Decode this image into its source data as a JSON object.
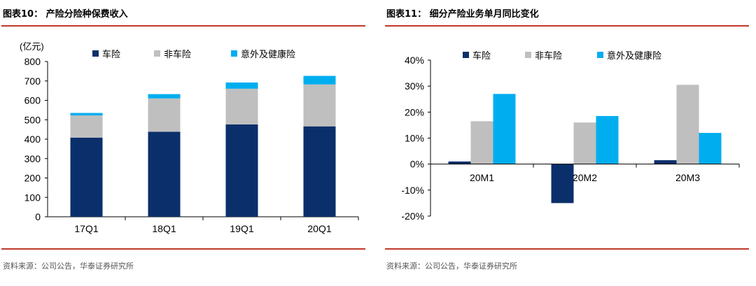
{
  "charts": {
    "left": {
      "figure_title": "图表10：  产险分险种保费收入",
      "source": "资料来源：公司公告，华泰证券研究所"
    },
    "right": {
      "figure_title": "图表11：  细分产险业务单月同比变化",
      "source": "资料来源：公司公告，华泰证券研究所"
    }
  },
  "chart_data": [
    {
      "type": "bar",
      "stacked": true,
      "title": "产险分险种保费收入",
      "unit_label": "(亿元)",
      "categories": [
        "17Q1",
        "18Q1",
        "19Q1",
        "20Q1"
      ],
      "series": [
        {
          "name": "车险",
          "color": "#0b2f6b",
          "values": [
            408,
            438,
            476,
            466
          ]
        },
        {
          "name": "非车险",
          "color": "#bfbfbf",
          "values": [
            114,
            172,
            184,
            216
          ]
        },
        {
          "name": "意外及健康险",
          "color": "#00aeef",
          "values": [
            13,
            22,
            32,
            44
          ]
        }
      ],
      "ylim": [
        0,
        800
      ],
      "yticks": [
        0,
        100,
        200,
        300,
        400,
        500,
        600,
        700,
        800
      ],
      "ytick_labels": [
        "0",
        "100",
        "200",
        "300",
        "400",
        "500",
        "600",
        "700",
        "800"
      ],
      "legend": "top"
    },
    {
      "type": "bar",
      "stacked": false,
      "title": "细分产险业务单月同比变化",
      "categories": [
        "20M1",
        "20M2",
        "20M3"
      ],
      "series": [
        {
          "name": "车险",
          "color": "#0b2f6b",
          "values": [
            1,
            -15,
            1.5
          ]
        },
        {
          "name": "非车险",
          "color": "#bfbfbf",
          "values": [
            16.5,
            16,
            30.5
          ]
        },
        {
          "name": "意外及健康险",
          "color": "#00aeef",
          "values": [
            27,
            18.5,
            12
          ]
        }
      ],
      "ylim": [
        -20,
        40
      ],
      "yticks": [
        -20,
        -10,
        0,
        10,
        20,
        30,
        40
      ],
      "ytick_labels": [
        "-20%",
        "-10%",
        "0%",
        "10%",
        "20%",
        "30%",
        "40%"
      ],
      "legend": "top"
    }
  ]
}
